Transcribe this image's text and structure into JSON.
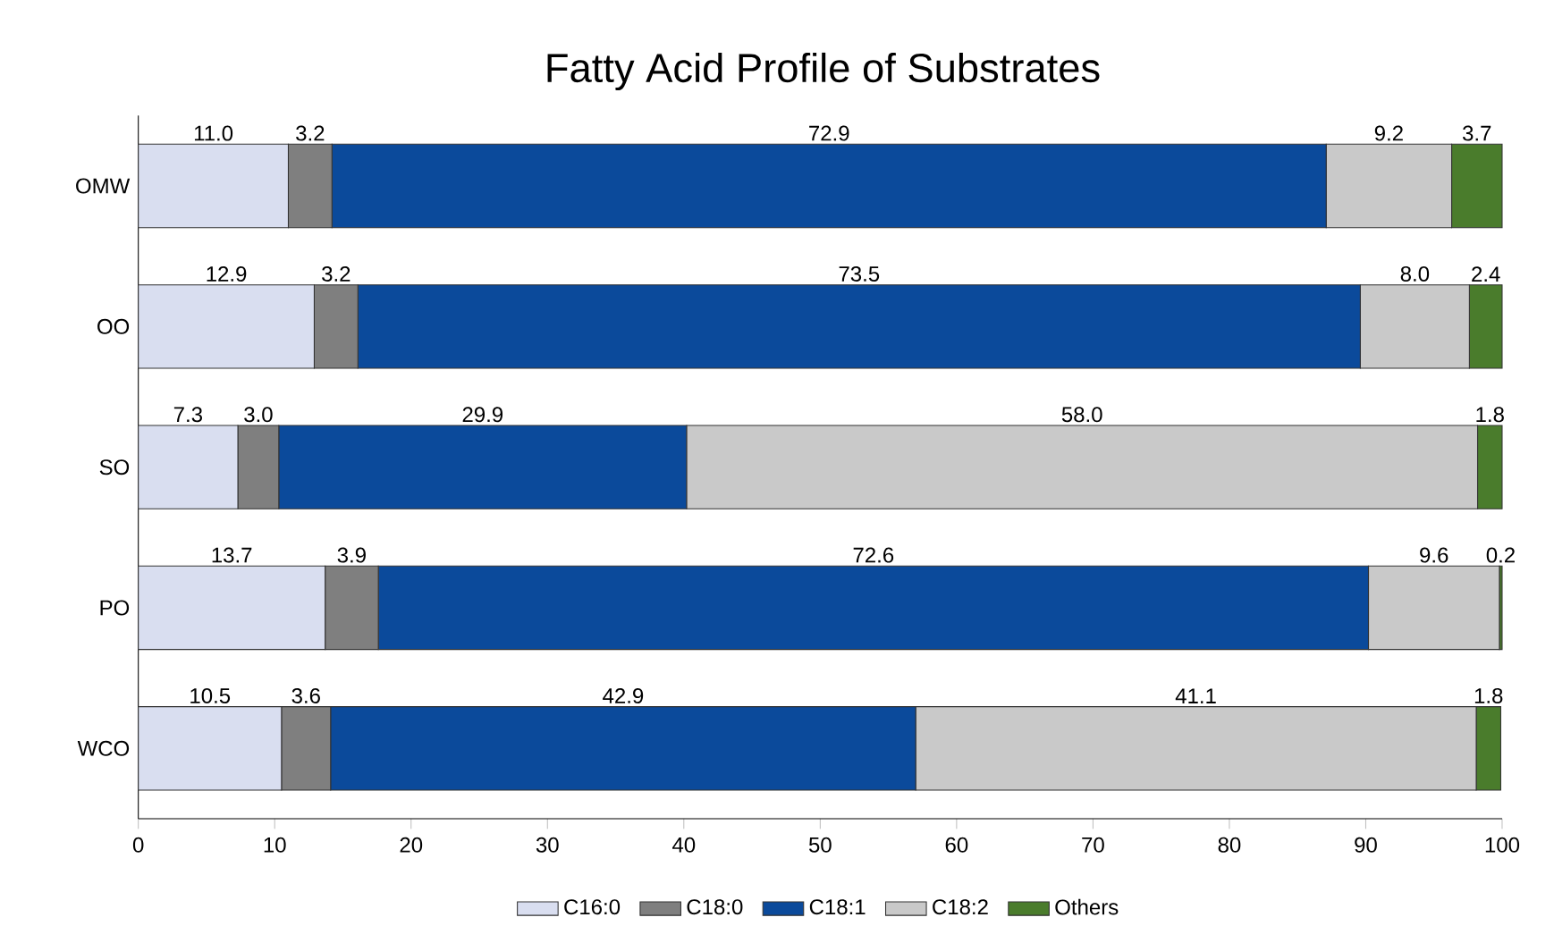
{
  "chart_data": {
    "type": "bar",
    "orientation": "horizontal",
    "stacked": true,
    "title": "Fatty Acid Profile of Substrates",
    "categories": [
      "OMW",
      "OO",
      "SO",
      "PO",
      "WCO"
    ],
    "series": [
      {
        "name": "C16:0",
        "color": "#d9def0",
        "values": [
          11.0,
          12.9,
          7.3,
          13.7,
          10.5
        ],
        "value_labels": [
          "11.0",
          "12.9",
          "7.3",
          "13.7",
          "10.5"
        ]
      },
      {
        "name": "C18:0",
        "color": "#7f7f7f",
        "values": [
          3.2,
          3.2,
          3.0,
          3.9,
          3.6
        ],
        "value_labels": [
          "3.2",
          "3.2",
          "3.0",
          "3.9",
          "3.6"
        ]
      },
      {
        "name": "C18:1",
        "color": "#0b4a9b",
        "values": [
          72.9,
          73.5,
          29.9,
          72.6,
          42.9
        ],
        "value_labels": [
          "72.9",
          "73.5",
          "29.9",
          "72.6",
          "42.9"
        ]
      },
      {
        "name": "C18:2",
        "color": "#c9c9c9",
        "values": [
          9.2,
          8.0,
          58.0,
          9.6,
          41.1
        ],
        "value_labels": [
          "9.2",
          "8.0",
          "58.0",
          "9.6",
          "41.1"
        ]
      },
      {
        "name": "Others",
        "color": "#4a7c2c",
        "values": [
          3.7,
          2.4,
          1.8,
          0.2,
          1.8
        ],
        "value_labels": [
          "3.7",
          "2.4",
          "1.8",
          "0.2",
          "1.8"
        ]
      }
    ],
    "xlim": [
      0,
      100
    ],
    "xticks": [
      0,
      10,
      20,
      30,
      40,
      50,
      60,
      70,
      80,
      90,
      100
    ],
    "grid": false,
    "legend": "bottom"
  }
}
